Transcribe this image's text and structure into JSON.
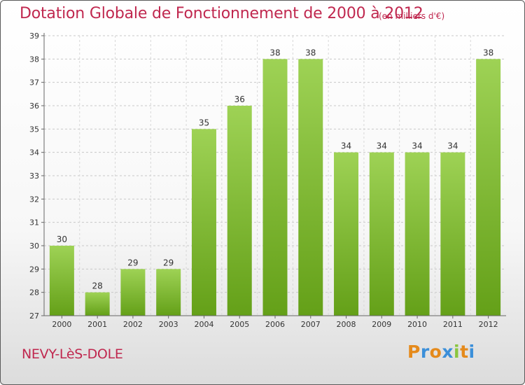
{
  "title": "Dotation Globale de Fonctionnement de 2000 à 2012",
  "subtitle": "(en milliers d'€)",
  "place": "NEVY-LèS-DOLE",
  "logo": {
    "letters": [
      "P",
      "r",
      "o",
      "x",
      "i",
      "t",
      "i"
    ],
    "colors": [
      "#e58a1b",
      "#3b8fd9",
      "#e58a1b",
      "#3b8fd9",
      "#8ac63f",
      "#e58a1b",
      "#3b8fd9"
    ]
  },
  "colors": {
    "bar_top": "#9ed255",
    "bar_bottom": "#64a018",
    "title": "#c0284f"
  },
  "chart_data": {
    "type": "bar",
    "categories": [
      "2000",
      "2001",
      "2002",
      "2003",
      "2004",
      "2005",
      "2006",
      "2007",
      "2008",
      "2009",
      "2010",
      "2011",
      "2012"
    ],
    "values": [
      30,
      28,
      29,
      29,
      35,
      36,
      38,
      38,
      34,
      34,
      34,
      34,
      38
    ],
    "data_labels": [
      "30",
      "28",
      "29",
      "29",
      "35",
      "36",
      "38",
      "38",
      "34",
      "34",
      "34",
      "34",
      "38"
    ],
    "title": "Dotation Globale de Fonctionnement de 2000 à 2012",
    "subtitle": "(en milliers d'€)",
    "xlabel": "",
    "ylabel": "",
    "ylim": [
      27,
      39
    ],
    "yticks": [
      "27",
      "28",
      "29",
      "30",
      "31",
      "32",
      "33",
      "34",
      "35",
      "36",
      "37",
      "38",
      "39"
    ],
    "grid": true
  }
}
